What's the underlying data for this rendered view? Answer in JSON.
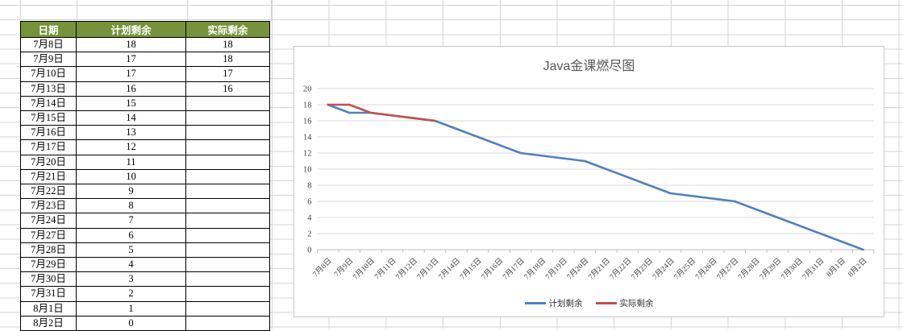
{
  "table": {
    "headers": [
      "日期",
      "计划剩余",
      "实际剩余"
    ],
    "header_bg_color": "#76933C",
    "header_text_color": "#FFFFFF",
    "rows": [
      [
        "7月8日",
        "18",
        "18"
      ],
      [
        "7月9日",
        "17",
        "18"
      ],
      [
        "7月10日",
        "17",
        "17"
      ],
      [
        "7月13日",
        "16",
        "16"
      ],
      [
        "7月14日",
        "15",
        ""
      ],
      [
        "7月15日",
        "14",
        ""
      ],
      [
        "7月16日",
        "13",
        ""
      ],
      [
        "7月17日",
        "12",
        ""
      ],
      [
        "7月20日",
        "11",
        ""
      ],
      [
        "7月21日",
        "10",
        ""
      ],
      [
        "7月22日",
        "9",
        ""
      ],
      [
        "7月23日",
        "8",
        ""
      ],
      [
        "7月24日",
        "7",
        ""
      ],
      [
        "7月27日",
        "6",
        ""
      ],
      [
        "7月28日",
        "5",
        ""
      ],
      [
        "7月29日",
        "4",
        ""
      ],
      [
        "7月30日",
        "3",
        ""
      ],
      [
        "7月31日",
        "2",
        ""
      ],
      [
        "8月1日",
        "1",
        ""
      ],
      [
        "8月2日",
        "0",
        ""
      ]
    ]
  },
  "chart_data": {
    "type": "line",
    "title": "Java金课燃尽图",
    "categories": [
      "7月8日",
      "7月9日",
      "7月10日",
      "7月11日",
      "7月12日",
      "7月13日",
      "7月14日",
      "7月15日",
      "7月16日",
      "7月17日",
      "7月18日",
      "7月19日",
      "7月20日",
      "7月21日",
      "7月22日",
      "7月23日",
      "7月24日",
      "7月25日",
      "7月26日",
      "7月27日",
      "7月28日",
      "7月29日",
      "7月30日",
      "7月31日",
      "8月1日",
      "8月2日"
    ],
    "series": [
      {
        "name": "计划剩余",
        "color": "#4F81BD",
        "values": [
          18,
          17,
          17,
          null,
          null,
          16,
          15,
          14,
          13,
          12,
          null,
          null,
          11,
          10,
          9,
          8,
          7,
          null,
          null,
          6,
          5,
          4,
          3,
          2,
          1,
          0
        ]
      },
      {
        "name": "实际剩余",
        "color": "#C0504D",
        "values": [
          18,
          18,
          17,
          null,
          null,
          16,
          null,
          null,
          null,
          null,
          null,
          null,
          null,
          null,
          null,
          null,
          null,
          null,
          null,
          null,
          null,
          null,
          null,
          null,
          null,
          null
        ]
      }
    ],
    "xlabel": "",
    "ylabel": "",
    "ylim": [
      0,
      20
    ],
    "ytick_step": 2,
    "grid": true,
    "legend_position": "bottom",
    "gridline_color": "#D9D9D9",
    "axis_color": "#BFBFBF"
  }
}
